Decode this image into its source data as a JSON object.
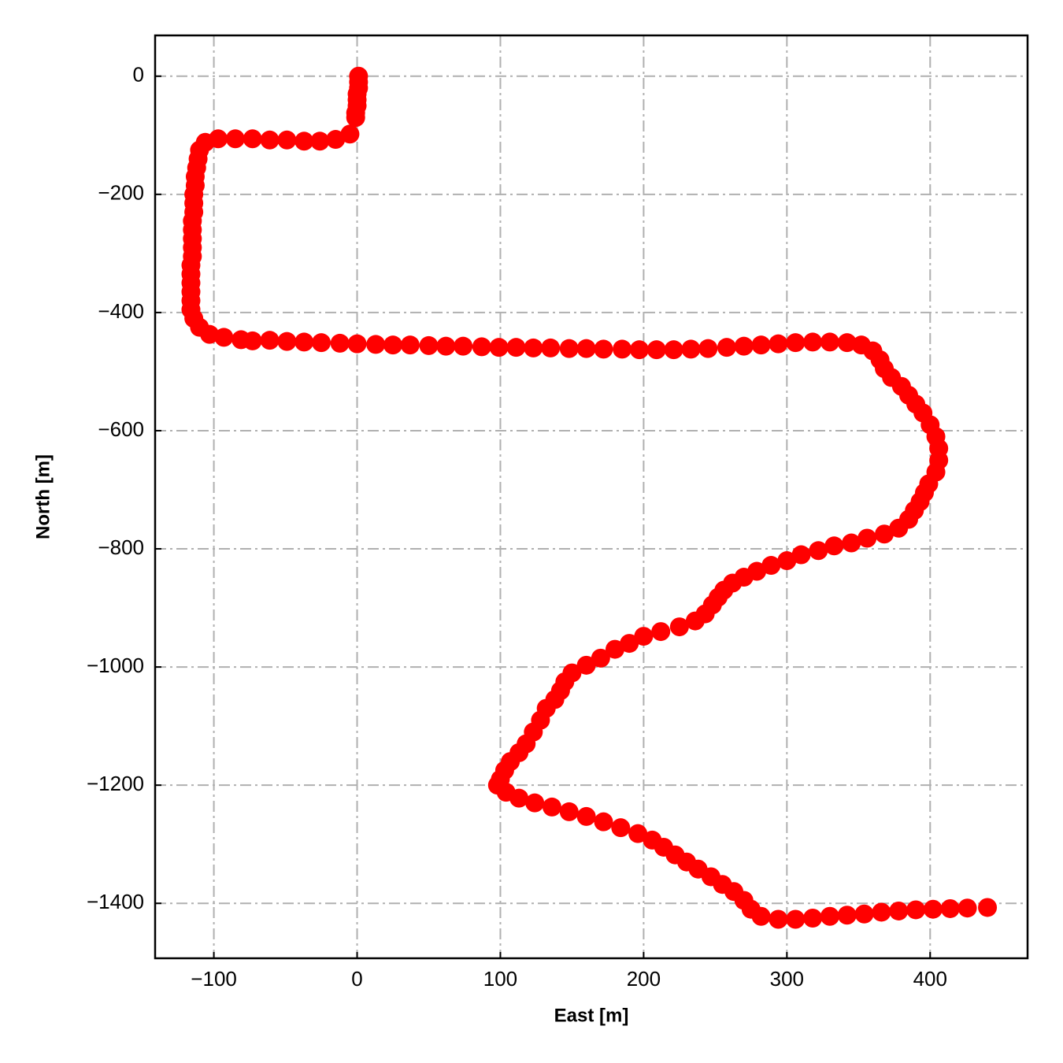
{
  "chart_data": {
    "type": "scatter",
    "x_label": "East [m]",
    "y_label": "North [m]",
    "color": "#ff0000",
    "grid": true,
    "xlim": [
      -141,
      468
    ],
    "ylim": [
      -1493,
      69
    ],
    "xticks": [
      {
        "value": -100,
        "label": "−100"
      },
      0,
      100,
      200,
      300,
      400
    ],
    "yticks": [
      0,
      {
        "value": -200,
        "label": "−200"
      },
      {
        "value": -400,
        "label": "−400"
      },
      {
        "value": -600,
        "label": "−600"
      },
      {
        "value": -800,
        "label": "−800"
      },
      {
        "value": -1000,
        "label": "−1000"
      },
      {
        "value": -1200,
        "label": "−1200"
      },
      {
        "value": -1400,
        "label": "−1400"
      }
    ],
    "x": [
      1,
      1,
      1,
      0,
      0,
      0,
      -1,
      -1,
      -5,
      -15,
      -26,
      -37,
      -49,
      -61,
      -73,
      -85,
      -97,
      -106,
      -110,
      -111,
      -112,
      -113,
      -113,
      -114,
      -114,
      -114,
      -115,
      -115,
      -115,
      -115,
      -115,
      -116,
      -116,
      -116,
      -116,
      -116,
      -116,
      -114,
      -110,
      -103,
      -93,
      -81,
      -73,
      -61,
      -49,
      -37,
      -25,
      -12,
      0,
      13,
      25,
      37,
      50,
      62,
      74,
      87,
      99,
      111,
      123,
      135,
      148,
      160,
      172,
      185,
      197,
      209,
      221,
      233,
      245,
      258,
      270,
      282,
      294,
      306,
      318,
      330,
      342,
      352,
      360,
      365,
      368,
      373,
      380,
      385,
      390,
      395,
      400,
      404,
      406,
      406,
      404,
      399,
      396,
      393,
      389,
      385,
      378,
      368,
      356,
      345,
      333,
      322,
      310,
      300,
      289,
      279,
      270,
      262,
      256,
      252,
      248,
      243,
      236,
      225,
      212,
      200,
      190,
      180,
      170,
      160,
      150,
      145,
      142,
      138,
      132,
      128,
      123,
      118,
      113,
      107,
      103,
      100,
      98,
      104,
      113,
      124,
      136,
      148,
      160,
      172,
      184,
      196,
      206,
      214,
      222,
      230,
      238,
      247,
      255,
      263,
      270,
      275,
      282,
      294,
      306,
      318,
      330,
      342,
      354,
      366,
      378,
      390,
      402,
      414,
      426,
      440
    ],
    "y": [
      0,
      -10,
      -20,
      -30,
      -40,
      -50,
      -62,
      -70,
      -98,
      -107,
      -110,
      -110,
      -108,
      -108,
      -106,
      -106,
      -106,
      -112,
      -125,
      -140,
      -155,
      -170,
      -185,
      -200,
      -215,
      -230,
      -245,
      -260,
      -275,
      -290,
      -305,
      -320,
      -335,
      -350,
      -365,
      -380,
      -395,
      -410,
      -425,
      -437,
      -442,
      -446,
      -448,
      -447,
      -449,
      -450,
      -451,
      -452,
      -453,
      -454,
      -455,
      -455,
      -456,
      -457,
      -457,
      -458,
      -459,
      -459,
      -460,
      -460,
      -461,
      -461,
      -462,
      -462,
      -463,
      -463,
      -463,
      -462,
      -461,
      -459,
      -457,
      -455,
      -453,
      -451,
      -450,
      -450,
      -451,
      -455,
      -465,
      -480,
      -495,
      -510,
      -525,
      -540,
      -555,
      -570,
      -590,
      -610,
      -630,
      -650,
      -670,
      -690,
      -705,
      -720,
      -735,
      -750,
      -765,
      -775,
      -782,
      -790,
      -795,
      -803,
      -810,
      -820,
      -828,
      -838,
      -848,
      -858,
      -870,
      -882,
      -895,
      -910,
      -922,
      -932,
      -940,
      -948,
      -960,
      -970,
      -985,
      -997,
      -1010,
      -1025,
      -1040,
      -1055,
      -1070,
      -1090,
      -1110,
      -1130,
      -1145,
      -1160,
      -1175,
      -1190,
      -1200,
      -1212,
      -1222,
      -1230,
      -1237,
      -1245,
      -1253,
      -1262,
      -1272,
      -1282,
      -1293,
      -1305,
      -1318,
      -1330,
      -1342,
      -1355,
      -1368,
      -1380,
      -1395,
      -1410,
      -1422,
      -1427,
      -1427,
      -1425,
      -1422,
      -1420,
      -1418,
      -1415,
      -1413,
      -1411,
      -1410,
      -1409,
      -1408,
      -1407
    ]
  }
}
